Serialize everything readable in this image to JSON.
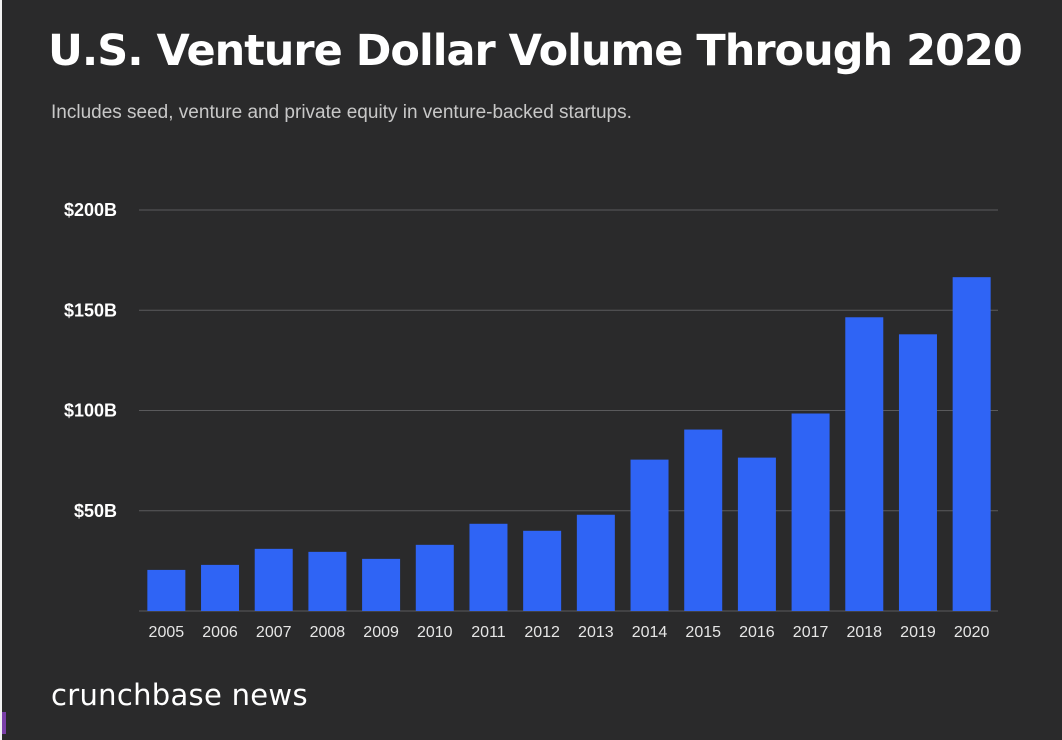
{
  "title": "U.S. Venture Dollar Volume Through 2020",
  "subtitle": "Includes seed, venture and private equity in venture-backed startups.",
  "brand": "crunchbase news",
  "colors": {
    "background": "#2a2a2b",
    "bar": "#2f64f5",
    "grid": "#5a5a5c",
    "text": "#ffffff"
  },
  "chart_data": {
    "type": "bar",
    "title": "U.S. Venture Dollar Volume Through 2020",
    "subtitle": "Includes seed, venture and private equity in venture-backed startups.",
    "xlabel": "",
    "ylabel": "",
    "categories": [
      "2005",
      "2006",
      "2007",
      "2008",
      "2009",
      "2010",
      "2011",
      "2012",
      "2013",
      "2014",
      "2015",
      "2016",
      "2017",
      "2018",
      "2019",
      "2020"
    ],
    "series": [
      {
        "values": [
          20.5,
          23,
          31,
          29.5,
          26,
          33,
          43.5,
          40,
          48,
          75.5,
          90.5,
          76.5,
          98.5,
          146.5,
          138,
          166.5
        ]
      }
    ],
    "ylim": [
      0,
      200
    ],
    "yticks": [
      50,
      100,
      150,
      200
    ],
    "ytick_labels": [
      "$50B",
      "$100B",
      "$150B",
      "$200B"
    ],
    "grid": true,
    "legend": "none"
  }
}
